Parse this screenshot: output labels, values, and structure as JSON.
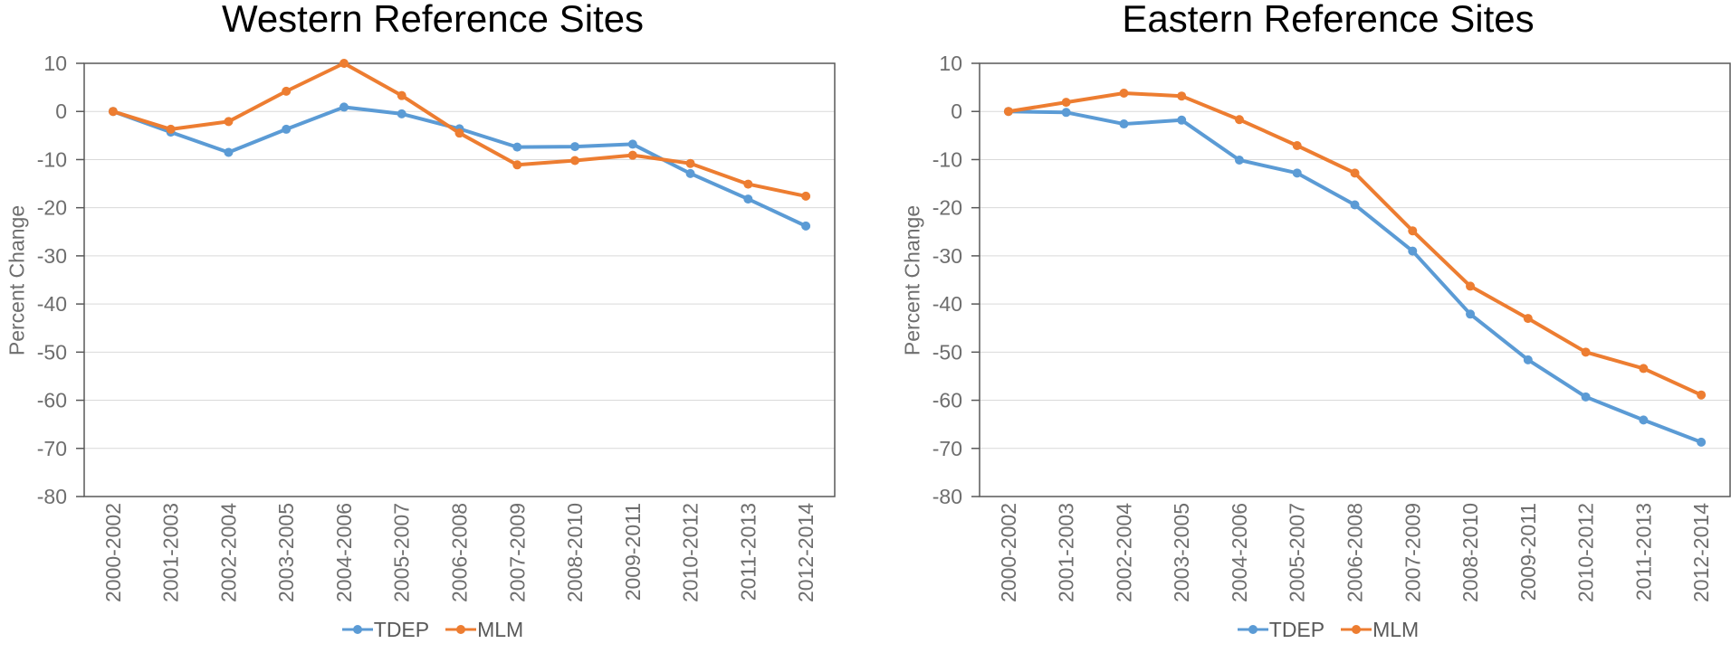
{
  "palette": {
    "grid": "#D9D9D9",
    "axis": "#595959",
    "tick_text": "#6E6E6E",
    "legend_text": "#595959",
    "title_text": "#000000",
    "series_blue": "#5B9BD5",
    "series_orange": "#ED7D31",
    "background": "#FFFFFF"
  },
  "chart_data": [
    {
      "type": "line",
      "title": "Western Reference Sites",
      "ylabel": "Percent Change",
      "xlabel": "",
      "ylim": [
        -80,
        10
      ],
      "yticks": [
        10,
        0,
        -10,
        -20,
        -30,
        -40,
        -50,
        -60,
        -70,
        -80
      ],
      "grid": true,
      "legend_position": "bottom",
      "marker": "circle",
      "x_label_rotation_deg": 90,
      "categories": [
        "2000-2002",
        "2001-2003",
        "2002-2004",
        "2003-2005",
        "2004-2006",
        "2005-2007",
        "2006-2008",
        "2007-2009",
        "2008-2010",
        "2009-2011",
        "2010-2012",
        "2011-2013",
        "2012-2014"
      ],
      "series": [
        {
          "name": "TDEP",
          "color": "#5B9BD5",
          "values": [
            0,
            -4.3,
            -8.5,
            -3.7,
            0.9,
            -0.5,
            -3.6,
            -7.4,
            -7.3,
            -6.8,
            -12.9,
            -18.2,
            -23.8
          ]
        },
        {
          "name": "MLM",
          "color": "#ED7D31",
          "values": [
            0,
            -3.7,
            -2.1,
            4.2,
            10,
            3.3,
            -4.5,
            -11.1,
            -10.2,
            -9.1,
            -10.8,
            -15.1,
            -17.6
          ]
        }
      ]
    },
    {
      "type": "line",
      "title": "Eastern Reference Sites",
      "ylabel": "Percent Change",
      "xlabel": "",
      "ylim": [
        -80,
        10
      ],
      "yticks": [
        10,
        0,
        -10,
        -20,
        -30,
        -40,
        -50,
        -60,
        -70,
        -80
      ],
      "grid": true,
      "legend_position": "bottom",
      "marker": "circle",
      "x_label_rotation_deg": 90,
      "categories": [
        "2000-2002",
        "2001-2003",
        "2002-2004",
        "2003-2005",
        "2004-2006",
        "2005-2007",
        "2006-2008",
        "2007-2009",
        "2008-2010",
        "2009-2011",
        "2010-2012",
        "2011-2013",
        "2012-2014"
      ],
      "series": [
        {
          "name": "TDEP",
          "color": "#5B9BD5",
          "values": [
            0,
            -0.2,
            -2.6,
            -1.8,
            -10.1,
            -12.8,
            -19.4,
            -29,
            -42.1,
            -51.6,
            -59.3,
            -64.1,
            -68.7
          ]
        },
        {
          "name": "MLM",
          "color": "#ED7D31",
          "values": [
            0,
            1.9,
            3.8,
            3.2,
            -1.7,
            -7.1,
            -12.8,
            -24.8,
            -36.3,
            -43,
            -50,
            -53.4,
            -58.9
          ]
        }
      ]
    }
  ]
}
